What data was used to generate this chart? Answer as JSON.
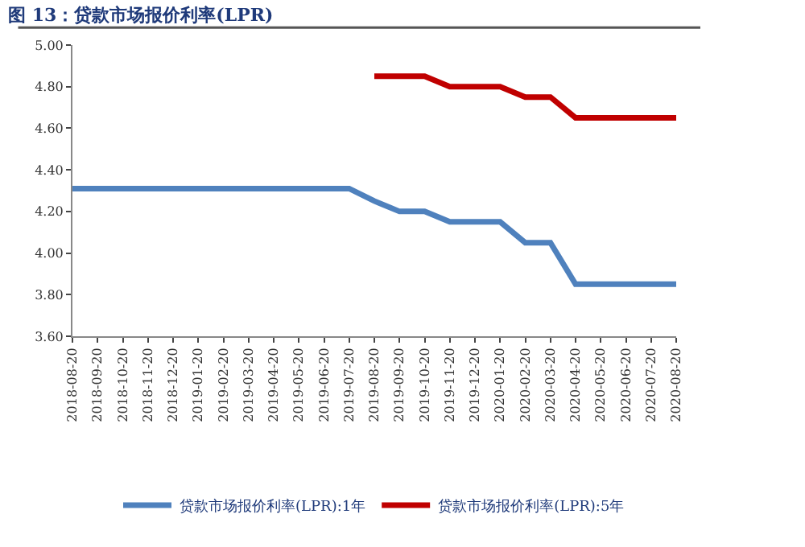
{
  "chart_data": {
    "type": "line",
    "title": "图 13：贷款市场报价利率(LPR)",
    "categories": [
      "2018-08-20",
      "2018-09-20",
      "2018-10-20",
      "2018-11-20",
      "2018-12-20",
      "2019-01-20",
      "2019-02-20",
      "2019-03-20",
      "2019-04-20",
      "2019-05-20",
      "2019-06-20",
      "2019-07-20",
      "2019-08-20",
      "2019-09-20",
      "2019-10-20",
      "2019-11-20",
      "2019-12-20",
      "2020-01-20",
      "2020-02-20",
      "2020-03-20",
      "2020-04-20",
      "2020-05-20",
      "2020-06-20",
      "2020-07-20",
      "2020-08-20"
    ],
    "series": [
      {
        "name": "贷款市场报价利率(LPR):1年",
        "color": "#4f81bd",
        "values": [
          4.31,
          4.31,
          4.31,
          4.31,
          4.31,
          4.31,
          4.31,
          4.31,
          4.31,
          4.31,
          4.31,
          4.31,
          4.25,
          4.2,
          4.2,
          4.15,
          4.15,
          4.15,
          4.05,
          4.05,
          3.85,
          3.85,
          3.85,
          3.85,
          3.85
        ]
      },
      {
        "name": "贷款市场报价利率(LPR):5年",
        "color": "#c00000",
        "values": [
          null,
          null,
          null,
          null,
          null,
          null,
          null,
          null,
          null,
          null,
          null,
          null,
          4.85,
          4.85,
          4.85,
          4.8,
          4.8,
          4.8,
          4.75,
          4.75,
          4.65,
          4.65,
          4.65,
          4.65,
          4.65
        ]
      }
    ],
    "ylim": [
      3.6,
      5.0
    ],
    "yticks": [
      {
        "value": 3.6,
        "label": "3.60"
      },
      {
        "value": 3.8,
        "label": "3.80"
      },
      {
        "value": 4.0,
        "label": "4.00"
      },
      {
        "value": 4.2,
        "label": "4.20"
      },
      {
        "value": 4.4,
        "label": "4.40"
      },
      {
        "value": 4.6,
        "label": "4.60"
      },
      {
        "value": 4.8,
        "label": "4.80"
      },
      {
        "value": 5.0,
        "label": "5.00"
      }
    ],
    "legend": "bottom",
    "marker": "none",
    "line_style": "solid"
  }
}
